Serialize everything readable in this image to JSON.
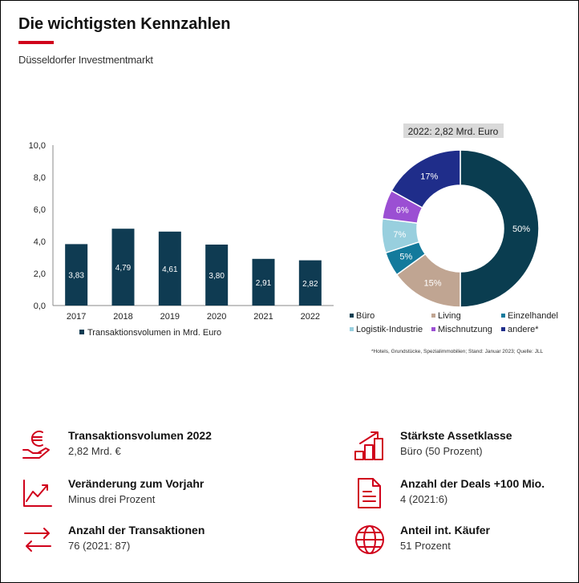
{
  "header": {
    "title": "Die wichtigsten Kennzahlen",
    "subtitle": "Düsseldorfer Investmentmarkt"
  },
  "colors": {
    "accent": "#d0021b",
    "bar": "#0f3b52"
  },
  "chart_data": [
    {
      "type": "bar",
      "categories": [
        "2017",
        "2018",
        "2019",
        "2020",
        "2021",
        "2022"
      ],
      "series": [
        {
          "name": "Transaktionsvolumen in Mrd. Euro",
          "values": [
            3.83,
            4.79,
            4.61,
            3.8,
            2.91,
            2.82
          ]
        }
      ],
      "value_labels": [
        "3,83",
        "4,79",
        "4,61",
        "3,80",
        "2,91",
        "2,82"
      ],
      "y_ticks": [
        "0,0",
        "2,0",
        "4,0",
        "6,0",
        "8,0",
        "10,0"
      ],
      "ylim": [
        0,
        10
      ],
      "grid": false,
      "legend": "bottom"
    },
    {
      "type": "pie",
      "title": "2022: 2,82 Mrd. Euro",
      "slices": [
        {
          "label": "Büro",
          "value": 50,
          "display": "50%",
          "color": "#0a3d50"
        },
        {
          "label": "Living",
          "value": 15,
          "display": "15%",
          "color": "#c0a592"
        },
        {
          "label": "Einzelhandel",
          "value": 5,
          "display": "5%",
          "color": "#137a9c"
        },
        {
          "label": "Logistik-Industrie",
          "value": 7,
          "display": "7%",
          "color": "#98cfde"
        },
        {
          "label": "Mischnutzung",
          "value": 6,
          "display": "6%",
          "color": "#9b4fd3"
        },
        {
          "label": "andere*",
          "value": 17,
          "display": "17%",
          "color": "#1f2d8a"
        }
      ],
      "legend": "bottom",
      "footnote": "*Hotels, Grundstücke, Spezialimmobilien; Stand: Januar 2023; Quelle: JLL"
    }
  ],
  "kpis": [
    {
      "icon": "euro-hand-icon",
      "label": "Transaktionsvolumen 2022",
      "value": "2,82 Mrd. €"
    },
    {
      "icon": "bar-steps-icon",
      "label": "Stärkste Assetklasse",
      "value": "Büro (50 Prozent)"
    },
    {
      "icon": "trend-chart-icon",
      "label": "Veränderung zum Vorjahr",
      "value": "Minus drei Prozent"
    },
    {
      "icon": "document-icon",
      "label": "Anzahl der Deals +100 Mio.",
      "value": "4 (2021:6)"
    },
    {
      "icon": "exchange-arrows-icon",
      "label": "Anzahl der Transaktionen",
      "value": "76 (2021: 87)"
    },
    {
      "icon": "globe-icon",
      "label": "Anteil int. Käufer",
      "value": "51 Prozent"
    }
  ]
}
